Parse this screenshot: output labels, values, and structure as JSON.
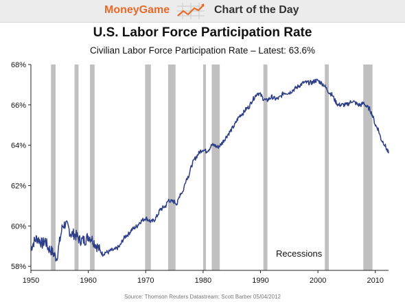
{
  "header": {
    "brand": "MoneyGame",
    "brand_icon": "rising-chart-icon",
    "section": "Chart of the Day",
    "brand_color": "#e8692a"
  },
  "chart_data": {
    "type": "line",
    "title": "U.S. Labor Force Participation Rate",
    "subtitle": "Civilian Labor Force Participation Rate – Latest: 63.6%",
    "xlabel": "",
    "ylabel": "",
    "xlim": [
      1950,
      2012.3
    ],
    "ylim": [
      57.8,
      68
    ],
    "x_ticks": [
      1950,
      1960,
      1970,
      1980,
      1990,
      2000,
      2010
    ],
    "y_ticks": [
      58,
      60,
      62,
      64,
      66,
      68
    ],
    "y_tick_labels": [
      "58%",
      "60%",
      "62%",
      "64%",
      "66%",
      "68%"
    ],
    "grid": false,
    "line_color": "#2d3e87",
    "recession_color": "#c0c0c0",
    "recessions_label": "Recessions",
    "recessions": [
      [
        1953.5,
        1954.3
      ],
      [
        1957.6,
        1958.3
      ],
      [
        1960.3,
        1961.1
      ],
      [
        1969.9,
        1970.9
      ],
      [
        1973.9,
        1975.2
      ],
      [
        1980.0,
        1980.5
      ],
      [
        1981.5,
        1982.9
      ],
      [
        1990.5,
        1991.2
      ],
      [
        2001.2,
        2001.9
      ],
      [
        2007.9,
        2009.5
      ]
    ],
    "series": [
      {
        "x": [
          1950,
          1950.5,
          1951,
          1951.5,
          1952,
          1952.5,
          1953,
          1953.5,
          1954,
          1954.5,
          1955,
          1955.5,
          1956,
          1956.5,
          1957,
          1957.5,
          1958,
          1958.5,
          1959,
          1959.5,
          1960,
          1960.5,
          1961,
          1961.5,
          1962,
          1962.5,
          1963,
          1963.5,
          1964,
          1964.5,
          1965,
          1965.5,
          1966,
          1966.5,
          1967,
          1967.5,
          1968,
          1968.5,
          1969,
          1969.5,
          1970,
          1970.5,
          1971,
          1971.5,
          1972,
          1972.5,
          1973,
          1973.5,
          1974,
          1974.5,
          1975,
          1975.5,
          1976,
          1976.5,
          1977,
          1977.5,
          1978,
          1978.5,
          1979,
          1979.5,
          1980,
          1980.5,
          1981,
          1981.5,
          1982,
          1982.5,
          1983,
          1983.5,
          1984,
          1984.5,
          1985,
          1985.5,
          1986,
          1986.5,
          1987,
          1987.5,
          1988,
          1988.5,
          1989,
          1989.5,
          1990,
          1990.5,
          1991,
          1991.5,
          1992,
          1992.5,
          1993,
          1993.5,
          1994,
          1994.5,
          1995,
          1995.5,
          1996,
          1996.5,
          1997,
          1997.5,
          1998,
          1998.5,
          1999,
          1999.5,
          2000,
          2000.5,
          2001,
          2001.5,
          2002,
          2002.5,
          2003,
          2003.5,
          2004,
          2004.5,
          2005,
          2005.5,
          2006,
          2006.5,
          2007,
          2007.5,
          2008,
          2008.5,
          2009,
          2009.5,
          2010,
          2010.5,
          2011,
          2011.5,
          2012,
          2012.3
        ],
        "values": [
          58.9,
          59.2,
          59.4,
          59.3,
          59.1,
          59.3,
          58.9,
          58.8,
          58.6,
          58.4,
          59.2,
          60.0,
          60.1,
          59.9,
          59.6,
          59.6,
          59.5,
          59.3,
          59.3,
          59.3,
          59.5,
          59.4,
          59.2,
          59.0,
          58.8,
          58.6,
          58.7,
          58.7,
          58.8,
          58.8,
          58.9,
          59.0,
          59.3,
          59.5,
          59.6,
          59.8,
          59.9,
          60.0,
          60.2,
          60.3,
          60.4,
          60.3,
          60.2,
          60.3,
          60.5,
          60.8,
          60.9,
          61.0,
          61.3,
          61.2,
          61.2,
          61.1,
          61.6,
          61.7,
          62.3,
          62.5,
          63.0,
          63.3,
          63.5,
          63.7,
          63.8,
          63.7,
          63.8,
          64.0,
          64.0,
          63.9,
          64.0,
          64.2,
          64.4,
          64.6,
          64.8,
          65.0,
          65.3,
          65.5,
          65.6,
          65.8,
          65.9,
          66.2,
          66.4,
          66.6,
          66.5,
          66.3,
          66.2,
          66.3,
          66.4,
          66.3,
          66.3,
          66.4,
          66.6,
          66.6,
          66.6,
          66.7,
          66.8,
          66.9,
          67.0,
          67.1,
          67.1,
          67.1,
          67.1,
          67.2,
          67.2,
          67.1,
          67.0,
          66.8,
          66.6,
          66.5,
          66.2,
          66.0,
          66.0,
          66.0,
          66.0,
          66.1,
          66.2,
          66.1,
          66.0,
          66.0,
          66.1,
          65.9,
          65.8,
          65.5,
          65.0,
          64.8,
          64.3,
          64.1,
          63.8,
          63.6
        ]
      }
    ]
  },
  "annotation_source": "Source: Thomson Reuters Datastream; Scott Barber 05/04/2012"
}
